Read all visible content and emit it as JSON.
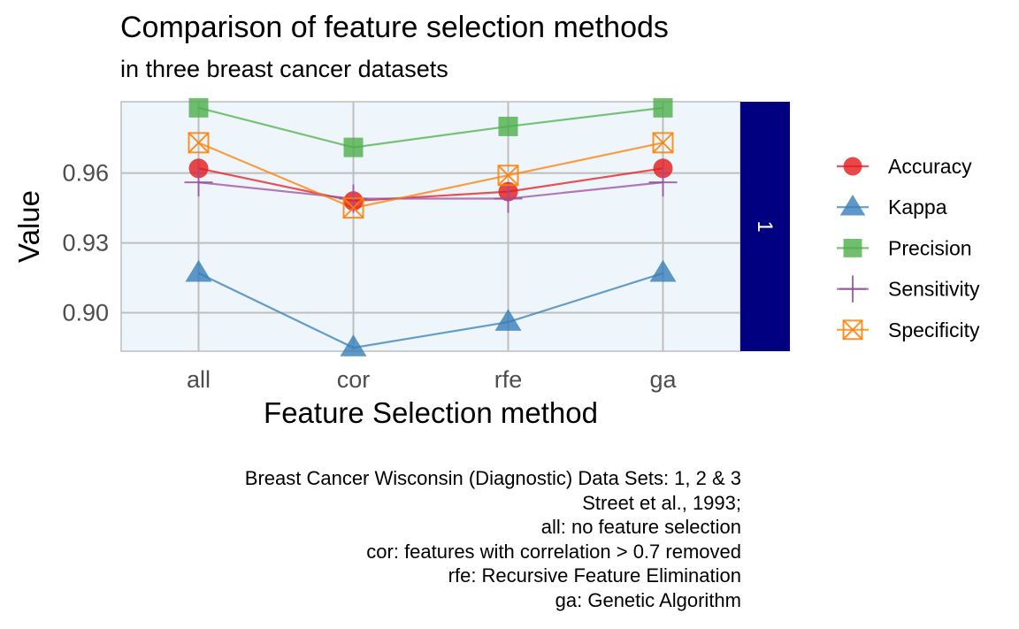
{
  "chart_data": {
    "type": "line",
    "title": "Comparison of feature selection methods",
    "subtitle": "in three breast cancer datasets",
    "xlabel": "Feature Selection method",
    "ylabel": "Value",
    "categories": [
      "all",
      "cor",
      "rfe",
      "ga"
    ],
    "y_ticks": [
      0.9,
      0.93,
      0.96
    ],
    "y_tick_labels": [
      "0.90",
      "0.93",
      "0.96"
    ],
    "ylim": [
      0.8835,
      0.9906
    ],
    "grid": true,
    "legend_position": "right",
    "facet_label": "1",
    "series": [
      {
        "name": "Accuracy",
        "values": [
          0.962,
          0.948,
          0.952,
          0.962
        ],
        "color": "#E41A1C",
        "marker": "circle"
      },
      {
        "name": "Kappa",
        "values": [
          0.917,
          0.885,
          0.896,
          0.917
        ],
        "color": "#377EB8",
        "marker": "triangle"
      },
      {
        "name": "Precision",
        "values": [
          0.988,
          0.971,
          0.98,
          0.988
        ],
        "color": "#4DAF4A",
        "marker": "square"
      },
      {
        "name": "Sensitivity",
        "values": [
          0.956,
          0.949,
          0.949,
          0.956
        ],
        "color": "#984EA3",
        "marker": "plus"
      },
      {
        "name": "Specificity",
        "values": [
          0.973,
          0.945,
          0.959,
          0.973
        ],
        "color": "#FF7F00",
        "marker": "boxx"
      }
    ]
  },
  "caption": [
    "Breast Cancer Wisconsin (Diagnostic) Data Sets: 1, 2 & 3",
    "Street et al., 1993;",
    "all: no feature selection",
    "cor: features with correlation > 0.7 removed",
    "rfe: Recursive Feature Elimination",
    "ga: Genetic Algorithm"
  ],
  "colors": {
    "panel_background": "#EEF6FC",
    "strip_background": "#000080",
    "strip_text": "#FFFFFF",
    "grid": "#BEBEBE"
  }
}
